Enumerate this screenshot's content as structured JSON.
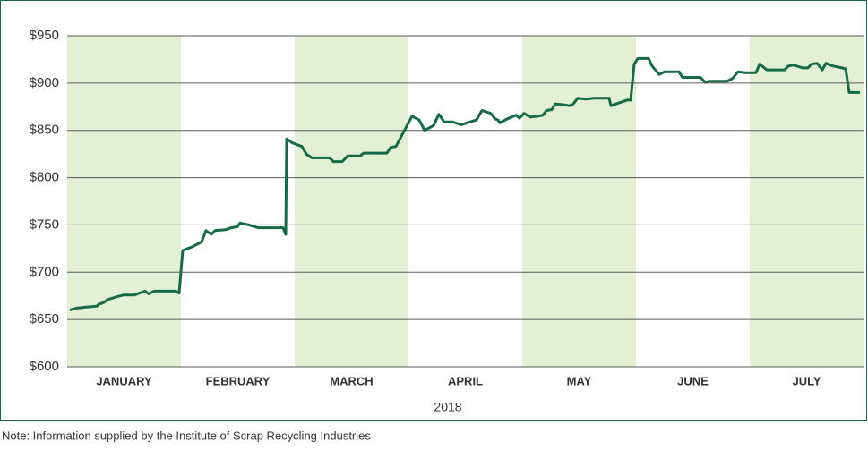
{
  "chart_data": {
    "type": "line",
    "categories": [
      "JANUARY",
      "FEBRUARY",
      "MARCH",
      "APRIL",
      "MAY",
      "JUNE",
      "JULY"
    ],
    "band_color": "#e4f0d4",
    "xlabel": "2018",
    "note": "Note: Information supplied by the Institute of Scrap Recycling Industries",
    "xlim": [
      0,
      7
    ],
    "ylim": [
      600,
      950
    ],
    "yticks": [
      {
        "value": 600,
        "label": "$600"
      },
      {
        "value": 650,
        "label": "$650"
      },
      {
        "value": 700,
        "label": "$700"
      },
      {
        "value": 750,
        "label": "$750"
      },
      {
        "value": 800,
        "label": "$800"
      },
      {
        "value": 850,
        "label": "$850"
      },
      {
        "value": 900,
        "label": "$900"
      },
      {
        "value": 950,
        "label": "$950"
      }
    ],
    "grid": true,
    "color": "#146b45",
    "x": [
      0.024,
      0.079,
      0.157,
      0.26,
      0.276,
      0.323,
      0.354,
      0.433,
      0.496,
      0.591,
      0.685,
      0.717,
      0.764,
      0.953,
      0.984,
      1.016,
      1.102,
      1.181,
      1.22,
      1.268,
      1.299,
      1.394,
      1.441,
      1.496,
      1.52,
      1.598,
      1.677,
      1.898,
      1.921,
      1.929,
      1.976,
      2.063,
      2.102,
      2.15,
      2.307,
      2.339,
      2.417,
      2.465,
      2.575,
      2.606,
      2.811,
      2.843,
      2.89,
      3.031,
      3.094,
      3.142,
      3.22,
      3.268,
      3.315,
      3.386,
      3.465,
      3.543,
      3.598,
      3.646,
      3.724,
      3.764,
      3.787,
      3.803,
      3.866,
      3.945,
      3.976,
      4.016,
      4.071,
      4.134,
      4.181,
      4.213,
      4.26,
      4.291,
      4.37,
      4.417,
      4.449,
      4.488,
      4.559,
      4.63,
      4.764,
      4.78,
      4.827,
      4.921,
      4.953,
      4.984,
      5.016,
      5.11,
      5.142,
      5.205,
      5.252,
      5.354,
      5.378,
      5.409,
      5.567,
      5.606,
      5.646,
      5.693,
      5.803,
      5.85,
      5.898,
      5.961,
      6.055,
      6.087,
      6.15,
      6.307,
      6.339,
      6.386,
      6.465,
      6.512,
      6.543,
      6.591,
      6.638,
      6.669,
      6.732,
      6.811,
      6.843,
      6.874,
      6.969
    ],
    "values": [
      660,
      662,
      663,
      664,
      666,
      668,
      671,
      674,
      676,
      676,
      680,
      677,
      680,
      680,
      678,
      723,
      727,
      732,
      744,
      740,
      744,
      745,
      747,
      748,
      752,
      750,
      747,
      747,
      740,
      841,
      837,
      833,
      825,
      821,
      821,
      817,
      817,
      823,
      823,
      826,
      826,
      832,
      833,
      865,
      861,
      850,
      855,
      867,
      859,
      859,
      856,
      859,
      861,
      871,
      868,
      862,
      861,
      858,
      862,
      866,
      863,
      868,
      864,
      865,
      866,
      871,
      872,
      878,
      877,
      876,
      878,
      884,
      883,
      884,
      884,
      876,
      878,
      882,
      882,
      920,
      926,
      926,
      918,
      909,
      912,
      912,
      912,
      906,
      906,
      901,
      902,
      902,
      902,
      905,
      912,
      911,
      911,
      920,
      914,
      914,
      918,
      919,
      916,
      916,
      920,
      921,
      914,
      921,
      918,
      916,
      915,
      890,
      890
    ]
  }
}
